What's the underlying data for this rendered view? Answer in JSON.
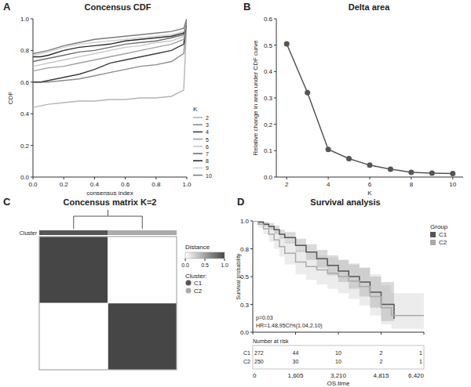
{
  "chart_data": [
    {
      "label": "A",
      "type": "line",
      "title": "Concensus CDF",
      "x_label": "consensus index",
      "y_label": "CDF",
      "legend_title": "K",
      "x": [
        0,
        0.05,
        0.1,
        0.2,
        0.3,
        0.4,
        0.5,
        0.6,
        0.7,
        0.8,
        0.9,
        0.98,
        1
      ],
      "series": [
        {
          "name": "2",
          "color": "#b5b5b5",
          "values": [
            0.44,
            0.45,
            0.46,
            0.47,
            0.48,
            0.48,
            0.49,
            0.49,
            0.5,
            0.5,
            0.51,
            0.55,
            1
          ]
        },
        {
          "name": "3",
          "color": "#8c8c8c",
          "values": [
            0.6,
            0.6,
            0.6,
            0.61,
            0.62,
            0.64,
            0.66,
            0.68,
            0.7,
            0.71,
            0.73,
            0.78,
            1
          ]
        },
        {
          "name": "4",
          "color": "#3c3c3c",
          "values": [
            0.6,
            0.6,
            0.61,
            0.63,
            0.65,
            0.68,
            0.72,
            0.74,
            0.76,
            0.78,
            0.8,
            0.84,
            1
          ]
        },
        {
          "name": "5",
          "color": "#a0a0a0",
          "values": [
            0.67,
            0.68,
            0.69,
            0.7,
            0.72,
            0.74,
            0.76,
            0.78,
            0.8,
            0.82,
            0.84,
            0.87,
            1
          ]
        },
        {
          "name": "6",
          "color": "#c8c8c8",
          "values": [
            0.7,
            0.71,
            0.72,
            0.74,
            0.76,
            0.78,
            0.8,
            0.82,
            0.83,
            0.85,
            0.86,
            0.89,
            1
          ]
        },
        {
          "name": "7",
          "color": "#6e6e6e",
          "values": [
            0.73,
            0.74,
            0.75,
            0.77,
            0.79,
            0.8,
            0.82,
            0.84,
            0.85,
            0.86,
            0.88,
            0.9,
            1
          ]
        },
        {
          "name": "8",
          "color": "#2a2a2a",
          "values": [
            0.76,
            0.76,
            0.77,
            0.8,
            0.82,
            0.83,
            0.84,
            0.86,
            0.87,
            0.88,
            0.89,
            0.91,
            1
          ]
        },
        {
          "name": "9",
          "color": "#d0d0d0",
          "values": [
            0.77,
            0.78,
            0.79,
            0.82,
            0.84,
            0.85,
            0.86,
            0.87,
            0.88,
            0.89,
            0.9,
            0.92,
            1
          ]
        },
        {
          "name": "10",
          "color": "#7a7a7a",
          "values": [
            0.78,
            0.79,
            0.8,
            0.83,
            0.85,
            0.87,
            0.88,
            0.89,
            0.9,
            0.91,
            0.92,
            0.94,
            1
          ]
        }
      ],
      "xlim": [
        0,
        1
      ],
      "xticks": [
        {
          "value": 0,
          "label": "0.0"
        },
        0.2,
        0.4,
        0.6,
        0.8,
        {
          "value": 1,
          "label": "1.0"
        }
      ],
      "ylim": [
        0,
        1
      ],
      "yticks": [
        {
          "value": 0,
          "label": "0.0"
        },
        0.2,
        0.4,
        0.6,
        0.8,
        {
          "value": 1,
          "label": "1.0"
        }
      ]
    },
    {
      "label": "B",
      "type": "line",
      "marker": "circle",
      "title": "Delta area",
      "x_label": "K",
      "y_label": "Relative change in area under CDF curve",
      "color": "#555555",
      "x": [
        2,
        3,
        4,
        5,
        6,
        7,
        8,
        9,
        10
      ],
      "values": [
        0.505,
        0.32,
        0.105,
        0.07,
        0.045,
        0.03,
        0.018,
        0.015,
        0.013
      ],
      "xlim": [
        1.5,
        10.5
      ],
      "xticks": [
        2,
        4,
        6,
        8,
        10
      ],
      "ylim": [
        0,
        0.6
      ],
      "yticks": [
        {
          "value": 0,
          "label": "0.0"
        },
        0.1,
        0.2,
        0.3,
        0.4,
        0.5,
        0.6
      ]
    },
    {
      "label": "C",
      "type": "heatmap",
      "title": "Concensus matrix K=2",
      "annotation_label": "Cluster",
      "legend_title": "Cluster:",
      "cells": [
        [
          1,
          0
        ],
        [
          0,
          1
        ]
      ],
      "colorbar": {
        "title": "Distance",
        "range": [
          0,
          1
        ],
        "ticks": [
          {
            "value": 0,
            "label": "0.0"
          },
          0.5,
          {
            "value": 1,
            "label": "1.0"
          }
        ]
      },
      "series": [
        {
          "name": "C1",
          "color": "#555555"
        },
        {
          "name": "C2",
          "color": "#aaaaaa"
        }
      ]
    },
    {
      "label": "D",
      "type": "line",
      "line_style": "step",
      "title": "Survival analysis",
      "x_label": "OS.time",
      "y_label": "Survival probability",
      "legend_title": "Group",
      "series": [
        {
          "name": "C1",
          "color": "#555555",
          "x": [
            0,
            200,
            400,
            600,
            800,
            1000,
            1200,
            1605,
            2000,
            2400,
            2800,
            3210,
            3600,
            4000,
            4400,
            4815,
            5300
          ],
          "values": [
            1,
            0.99,
            0.97,
            0.95,
            0.92,
            0.88,
            0.85,
            0.78,
            0.72,
            0.66,
            0.6,
            0.55,
            0.5,
            0.45,
            0.36,
            0.25,
            0.12
          ],
          "lower": [
            1,
            0.98,
            0.95,
            0.92,
            0.88,
            0.84,
            0.8,
            0.72,
            0.65,
            0.58,
            0.51,
            0.45,
            0.39,
            0.32,
            0.22,
            0.1,
            0.02
          ],
          "upper": [
            1,
            1,
            0.99,
            0.98,
            0.96,
            0.92,
            0.9,
            0.84,
            0.79,
            0.74,
            0.69,
            0.65,
            0.61,
            0.58,
            0.5,
            0.45,
            0.5
          ]
        },
        {
          "name": "C2",
          "color": "#aaaaaa",
          "x": [
            0,
            200,
            400,
            600,
            800,
            1000,
            1200,
            1605,
            2000,
            2400,
            2800,
            3210,
            3600,
            4000,
            4400,
            4815,
            5200,
            6420
          ],
          "values": [
            1,
            0.97,
            0.93,
            0.88,
            0.83,
            0.77,
            0.71,
            0.63,
            0.59,
            0.56,
            0.53,
            0.5,
            0.46,
            0.41,
            0.32,
            0.22,
            0.15,
            0.15
          ],
          "lower": [
            1,
            0.94,
            0.88,
            0.81,
            0.75,
            0.68,
            0.61,
            0.52,
            0.47,
            0.43,
            0.39,
            0.35,
            0.3,
            0.24,
            0.15,
            0.07,
            0.03,
            0.03
          ],
          "upper": [
            1,
            1,
            0.98,
            0.95,
            0.91,
            0.86,
            0.81,
            0.74,
            0.71,
            0.69,
            0.67,
            0.65,
            0.62,
            0.58,
            0.52,
            0.42,
            0.35,
            0.35
          ]
        }
      ],
      "xlim": [
        0,
        6420
      ],
      "xticks": [
        0,
        {
          "value": 1605,
          "label": "1,605"
        },
        {
          "value": 3210,
          "label": "3,210"
        },
        {
          "value": 4815,
          "label": "4,815"
        },
        {
          "value": 6420,
          "label": "6,420"
        }
      ],
      "ylim": [
        0,
        1
      ],
      "yticks": [
        {
          "value": 0,
          "label": "0.0"
        },
        {
          "value": 0.25,
          "label": "0.3"
        },
        {
          "value": 0.5,
          "label": "0.5"
        },
        {
          "value": 0.75,
          "label": "0.8"
        },
        {
          "value": 1,
          "label": "1.0"
        }
      ],
      "annotations": [
        "p=0.03",
        "HR=1.48,95CI%(1.04,2.10)"
      ],
      "risk_table": {
        "title": "Number at risk",
        "rows": [
          {
            "name": "C1",
            "values": [
              272,
              44,
              10,
              2,
              1
            ]
          },
          {
            "name": "C2",
            "values": [
              250,
              30,
              10,
              2,
              1
            ]
          }
        ]
      }
    }
  ]
}
